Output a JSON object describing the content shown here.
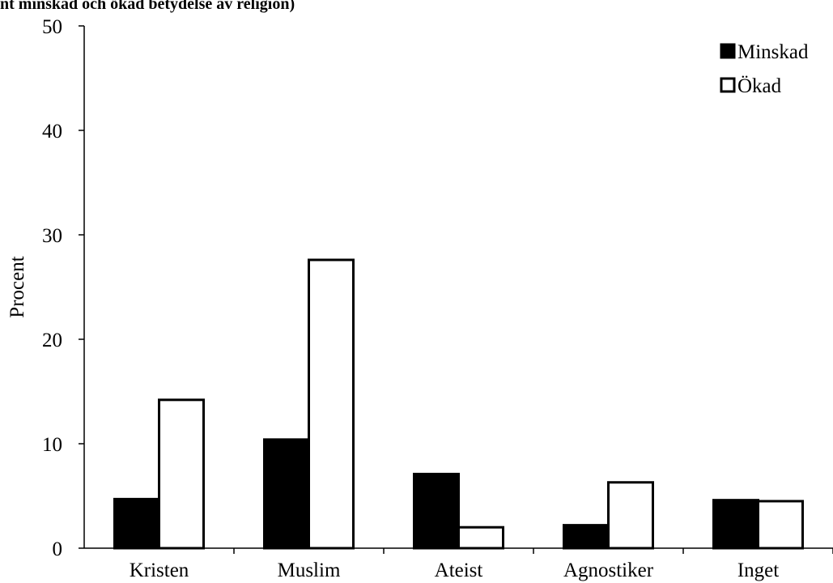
{
  "chart_data": {
    "type": "bar",
    "title": "nt minskad och ökad betydelse av religion)",
    "xlabel": "",
    "ylabel": "Procent",
    "ylim": [
      0,
      50
    ],
    "yticks": [
      0,
      10,
      20,
      30,
      40,
      50
    ],
    "categories": [
      "Kristen",
      "Muslim",
      "Ateist",
      "Agnostiker",
      "Inget"
    ],
    "series": [
      {
        "name": "Minskad",
        "values": [
          4.7,
          10.4,
          7.1,
          2.2,
          4.6
        ],
        "fill": "#000000"
      },
      {
        "name": "Ökad",
        "values": [
          14.2,
          27.6,
          2.0,
          6.3,
          4.5
        ],
        "fill": "#ffffff"
      }
    ],
    "legend_position": "top-right",
    "grid": false
  }
}
